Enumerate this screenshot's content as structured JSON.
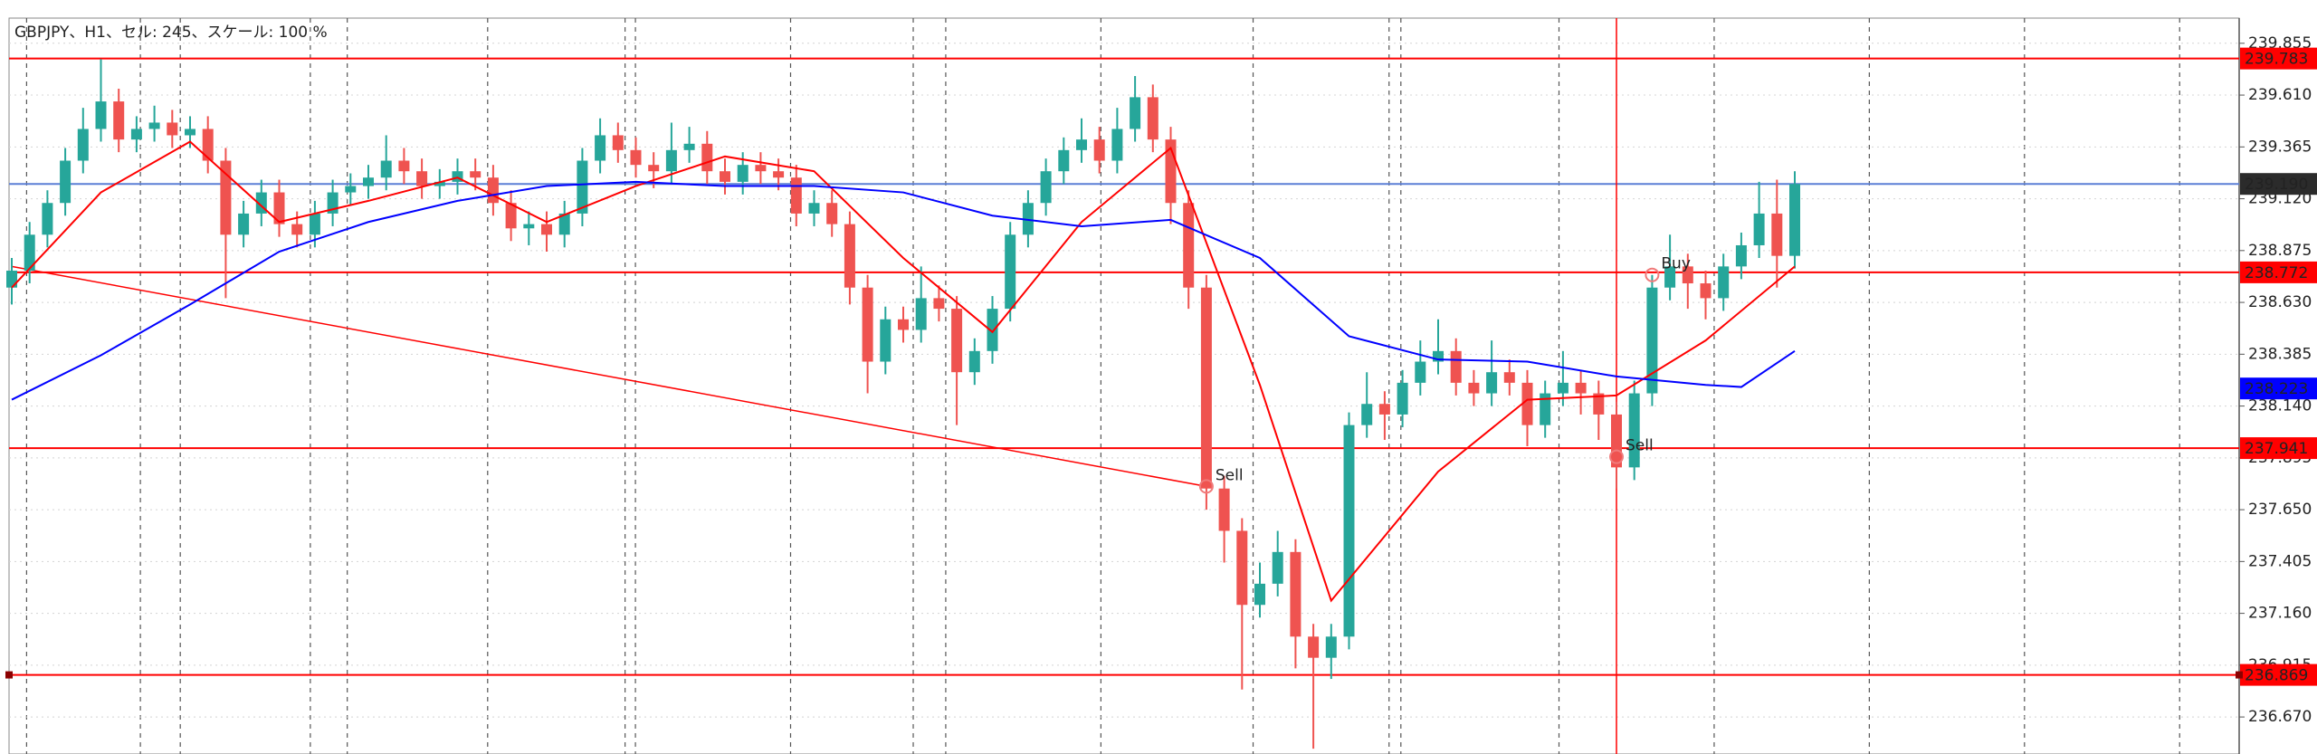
{
  "chart_data": {
    "type": "candlestick",
    "title": "GBPJPY、H1、セル: 245、スケール: 100 %",
    "up_color": "#26a69a",
    "down_color": "#ef5350",
    "open": [
      238.7,
      238.78,
      238.95,
      239.1,
      239.3,
      239.45,
      239.58,
      239.4,
      239.45,
      239.48,
      239.42,
      239.45,
      239.3,
      238.95,
      239.05,
      239.15,
      239.0,
      238.95,
      239.05,
      239.15,
      239.18,
      239.22,
      239.3,
      239.25,
      239.18,
      239.2,
      239.25,
      239.22,
      239.1,
      238.98,
      239.0,
      238.95,
      239.05,
      239.3,
      239.42,
      239.35,
      239.28,
      239.25,
      239.35,
      239.38,
      239.25,
      239.2,
      239.28,
      239.25,
      239.22,
      239.05,
      239.1,
      239.0,
      238.7,
      238.35,
      238.55,
      238.5,
      238.65,
      238.6,
      238.3,
      238.4,
      238.6,
      238.95,
      239.1,
      239.25,
      239.35,
      239.4,
      239.3,
      239.45,
      239.6,
      239.4,
      239.1,
      238.7,
      237.75,
      237.55,
      237.2,
      237.3,
      237.45,
      237.05,
      236.95,
      237.05,
      238.05,
      238.15,
      238.1,
      238.25,
      238.35,
      238.4,
      238.25,
      238.2,
      238.3,
      238.25,
      238.05,
      238.2,
      238.25,
      238.2,
      238.1,
      237.85,
      238.2,
      238.7,
      238.8,
      238.72,
      238.65,
      238.8,
      238.9,
      239.05,
      238.85
    ],
    "high": [
      238.84,
      239.01,
      239.16,
      239.36,
      239.55,
      239.78,
      239.64,
      239.51,
      239.56,
      239.54,
      239.51,
      239.51,
      239.36,
      239.11,
      239.21,
      239.21,
      239.06,
      239.11,
      239.21,
      239.24,
      239.28,
      239.42,
      239.36,
      239.31,
      239.26,
      239.31,
      239.31,
      239.28,
      239.16,
      239.06,
      239.06,
      239.11,
      239.36,
      239.5,
      239.48,
      239.41,
      239.34,
      239.48,
      239.46,
      239.44,
      239.31,
      239.34,
      239.34,
      239.31,
      239.28,
      239.16,
      239.16,
      239.06,
      238.76,
      238.61,
      238.61,
      238.8,
      238.71,
      238.66,
      238.46,
      238.66,
      239.01,
      239.16,
      239.31,
      239.41,
      239.5,
      239.46,
      239.55,
      239.7,
      239.66,
      239.46,
      239.16,
      238.76,
      237.81,
      237.61,
      237.4,
      237.55,
      237.51,
      237.11,
      237.11,
      238.11,
      238.3,
      238.21,
      238.31,
      238.45,
      238.55,
      238.46,
      238.31,
      238.45,
      238.36,
      238.31,
      238.26,
      238.4,
      238.31,
      238.26,
      238.16,
      238.26,
      238.76,
      238.95,
      238.86,
      238.78,
      238.86,
      238.96,
      239.2,
      239.21,
      239.25
    ],
    "low": [
      238.62,
      238.72,
      238.89,
      239.04,
      239.24,
      239.39,
      239.34,
      239.34,
      239.39,
      239.36,
      239.36,
      239.24,
      238.65,
      238.89,
      238.99,
      238.94,
      238.89,
      238.89,
      238.99,
      239.09,
      239.12,
      239.16,
      239.19,
      239.12,
      239.12,
      239.14,
      239.16,
      239.04,
      238.92,
      238.9,
      238.87,
      238.89,
      238.99,
      239.24,
      239.29,
      239.22,
      239.17,
      239.19,
      239.29,
      239.19,
      239.14,
      239.14,
      239.19,
      239.16,
      238.99,
      238.99,
      238.94,
      238.62,
      238.2,
      238.29,
      238.44,
      238.44,
      238.54,
      238.05,
      238.24,
      238.34,
      238.54,
      238.89,
      239.04,
      239.19,
      239.29,
      239.24,
      239.24,
      239.39,
      239.34,
      239.0,
      238.6,
      237.65,
      237.4,
      236.8,
      237.14,
      237.24,
      236.9,
      236.52,
      236.85,
      236.99,
      237.99,
      237.98,
      238.04,
      238.19,
      238.29,
      238.19,
      238.14,
      238.14,
      238.19,
      237.95,
      237.99,
      238.14,
      238.1,
      237.98,
      237.75,
      237.79,
      238.14,
      238.64,
      238.6,
      238.55,
      238.59,
      238.74,
      238.84,
      238.7,
      238.79
    ],
    "close": [
      238.78,
      238.95,
      239.1,
      239.3,
      239.45,
      239.58,
      239.4,
      239.45,
      239.48,
      239.42,
      239.45,
      239.3,
      238.95,
      239.05,
      239.15,
      239.0,
      238.95,
      239.05,
      239.15,
      239.18,
      239.22,
      239.3,
      239.25,
      239.18,
      239.2,
      239.25,
      239.22,
      239.1,
      238.98,
      239.0,
      238.95,
      239.05,
      239.3,
      239.42,
      239.35,
      239.28,
      239.25,
      239.35,
      239.38,
      239.25,
      239.2,
      239.28,
      239.25,
      239.22,
      239.05,
      239.1,
      239.0,
      238.7,
      238.35,
      238.55,
      238.5,
      238.65,
      238.6,
      238.3,
      238.4,
      238.6,
      238.95,
      239.1,
      239.25,
      239.35,
      239.4,
      239.3,
      239.45,
      239.6,
      239.4,
      239.1,
      238.7,
      237.75,
      237.55,
      237.2,
      237.3,
      237.45,
      237.05,
      236.95,
      237.05,
      238.05,
      238.15,
      238.1,
      238.25,
      238.35,
      238.4,
      238.25,
      238.2,
      238.3,
      238.25,
      238.05,
      238.2,
      238.25,
      238.2,
      238.1,
      237.85,
      238.2,
      238.7,
      238.8,
      238.72,
      238.65,
      238.8,
      238.9,
      239.05,
      238.85,
      239.19
    ],
    "series": [
      {
        "color": "#ff0000",
        "x": [
          0,
          5,
          10,
          15,
          20,
          25,
          30,
          35,
          40,
          45,
          50,
          55,
          60,
          65,
          70,
          74,
          80,
          85,
          90,
          95,
          100
        ],
        "values": [
          238.7,
          239.15,
          239.39,
          239.01,
          239.11,
          239.22,
          239.01,
          239.18,
          239.32,
          239.25,
          238.84,
          238.49,
          239.01,
          239.36,
          238.24,
          237.22,
          237.83,
          238.17,
          238.19,
          238.45,
          238.8
        ]
      },
      {
        "color": "#0000ff",
        "x": [
          0,
          5,
          10,
          15,
          20,
          25,
          30,
          35,
          40,
          45,
          50,
          55,
          60,
          65,
          70,
          75,
          80,
          85,
          90,
          95,
          97,
          100
        ],
        "values": [
          238.17,
          238.38,
          238.62,
          238.87,
          239.01,
          239.11,
          239.18,
          239.2,
          239.18,
          239.18,
          239.15,
          239.04,
          238.99,
          239.02,
          238.84,
          238.47,
          238.36,
          238.35,
          238.28,
          238.24,
          238.23,
          238.4
        ]
      }
    ],
    "ylim": [
      236.495,
      239.974
    ],
    "yticks": [
      239.855,
      {
        "value": 239.61,
        "label": "239.610"
      },
      239.365,
      {
        "value": 239.12,
        "label": "239.120"
      },
      238.875,
      {
        "value": 238.63,
        "label": "238.630"
      },
      238.385,
      {
        "value": 238.14,
        "label": "238.140"
      },
      237.895,
      {
        "value": 237.65,
        "label": "237.650"
      },
      237.405,
      {
        "value": 237.16,
        "label": "237.160"
      },
      236.915,
      {
        "value": 236.67,
        "label": "236.670"
      }
    ],
    "grid": true,
    "levels": [
      {
        "value": 239.783,
        "line_color": "#ff0000",
        "box_color": "#ff0000"
      },
      {
        "value": 239.19,
        "label": "239.190",
        "line_color": "#5b7fd6",
        "box_color": "#2b2b2b"
      },
      {
        "value": 238.772,
        "line_color": "#ff0000",
        "box_color": "#ff0000"
      },
      {
        "value": 238.223,
        "box_color": "#0000ff"
      },
      {
        "value": 237.941,
        "line_color": "#ff0000",
        "box_color": "#ff0000"
      },
      {
        "value": 236.869,
        "line_color": "#ff0000",
        "box_color": "#ff0000"
      }
    ],
    "trendline": {
      "color": "#ff0000",
      "x": [
        0,
        67
      ],
      "y": [
        238.8,
        237.76
      ]
    },
    "markers": [
      {
        "text": "Sell",
        "x": 67,
        "y": 237.76
      },
      {
        "text": "Sell",
        "x": 90,
        "y": 237.9
      },
      {
        "text": "Buy",
        "x": 92,
        "y": 238.76
      }
    ],
    "marker_color": "#f07a7a",
    "crosshair": {
      "x": 90,
      "color": "#ff0000"
    }
  }
}
